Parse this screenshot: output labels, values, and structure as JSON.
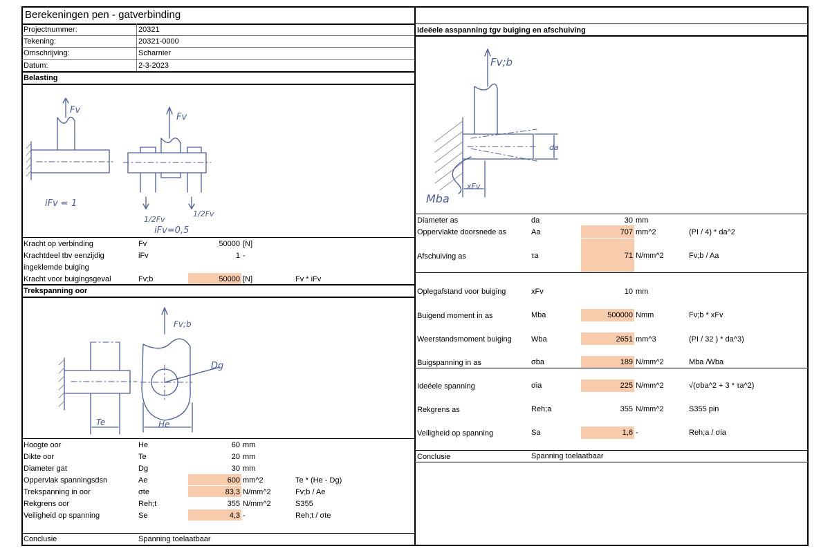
{
  "title": "Berekeningen pen - gatverbinding",
  "project": {
    "rows": [
      {
        "label": "Projectnummer:",
        "value": "20321"
      },
      {
        "label": "Tekening:",
        "value": "20321-0000"
      },
      {
        "label": "Omschrijving:",
        "value": "Scharnier"
      },
      {
        "label": "Datum:",
        "value": "2-3-2023"
      }
    ]
  },
  "belasting": {
    "header": "Belasting",
    "sketch_labels": {
      "fv1": "Fv",
      "fv2": "Fv",
      "ifv1": "iFv = 1",
      "half1": "1/2Fv",
      "half2": "1/2Fv",
      "ifv2": "iFv=0,5"
    },
    "rows": [
      {
        "label": "Kracht op verbinding",
        "symbol": "Fv",
        "value": "50000",
        "unit": "[N]",
        "formula": ""
      },
      {
        "label": "Krachtdeel  tbv eenzijdig",
        "symbol": "iFv",
        "value": "1",
        "unit": "-",
        "formula": ""
      },
      {
        "label": "ingeklemde buiging",
        "symbol": "",
        "value": "",
        "unit": "",
        "formula": ""
      },
      {
        "label": "Kracht voor buigingsgeval",
        "symbol": "Fv;b",
        "value": "50000",
        "unit": "[N]",
        "formula": "Fv * iFv"
      }
    ]
  },
  "trek": {
    "header": "Trekspanning oor",
    "sketch_labels": {
      "fvb": "Fv;b",
      "dg": "Dg",
      "te": "Te",
      "he": "He"
    },
    "rows": [
      {
        "label": "Hoogte oor",
        "symbol": "He",
        "value": "60",
        "unit": "mm",
        "formula": ""
      },
      {
        "label": "Dikte oor",
        "symbol": "Te",
        "value": "20",
        "unit": "mm",
        "formula": ""
      },
      {
        "label": "Diameter gat",
        "symbol": "Dg",
        "value": "30",
        "unit": "mm",
        "formula": ""
      },
      {
        "label": "Oppervlak spanningsdsn",
        "symbol": "Ae",
        "value": "600",
        "unit": "mm^2",
        "formula": "Te * (He - Dg)"
      },
      {
        "label": "Trekspanning in oor",
        "symbol": "σte",
        "value": "83,3",
        "unit": "N/mm^2",
        "formula": "Fv;b / Ae"
      },
      {
        "label": "Rekgrens oor",
        "symbol": "Reh;t",
        "value": "355",
        "unit": "N/mm^2",
        "formula": "S355"
      },
      {
        "label": "Veiligheid op spanning",
        "symbol": "Se",
        "value": "4,3",
        "unit": "-",
        "formula": "Reh;t / σte"
      }
    ],
    "conclusie_label": "Conclusie",
    "conclusie_value": "Spanning toelaatbaar"
  },
  "ideale": {
    "header": "Ideëele asspanning tgv buiging en afschuiving",
    "sketch_labels": {
      "fvb": "Fv;b",
      "da": "da",
      "xfv": "xFv",
      "mba": "Mba"
    },
    "rows": [
      {
        "label": "Diameter as",
        "symbol": "da",
        "value": "30",
        "unit": "mm",
        "formula": ""
      },
      {
        "label": "Oppervlakte doorsnede as",
        "symbol": "Aa",
        "value": "707",
        "unit": "mm^2",
        "formula": "(PI / 4) * da^2"
      },
      {
        "label": "Afschuiving as",
        "symbol": "τa",
        "value": "71",
        "unit": "N/mm^2",
        "formula": "Fv;b / Aa"
      },
      {
        "label": "Oplegafstand voor buiging",
        "symbol": "xFv",
        "value": "10",
        "unit": "mm",
        "formula": ""
      },
      {
        "label": "Buigend moment in as",
        "symbol": "Mba",
        "value": "500000",
        "unit": "Nmm",
        "formula": "Fv;b * xFv"
      },
      {
        "label": "Weerstandsmoment buiging",
        "symbol": "Wba",
        "value": "2651",
        "unit": "mm^3",
        "formula": "(PI / 32 ) * da^3)"
      },
      {
        "label": "Buigspanning in as",
        "symbol": "σba",
        "value": "189",
        "unit": "N/mm^2",
        "formula": "Mba /Wba"
      },
      {
        "label": "Ideëele spanning",
        "symbol": "σia",
        "value": "225",
        "unit": "N/mm^2",
        "formula": "√(σba^2 + 3 * τa^2)"
      },
      {
        "label": "Rekgrens as",
        "symbol": "Reh;a",
        "value": "355",
        "unit": "N/mm^2",
        "formula": "S355 pin"
      },
      {
        "label": "Veiligheid op spanning",
        "symbol": "Sa",
        "value": "1,6",
        "unit": "-",
        "formula": "Reh;a / σia"
      }
    ],
    "conclusie_label": "Conclusie",
    "conclusie_value": "Spanning toelaatbaar"
  }
}
